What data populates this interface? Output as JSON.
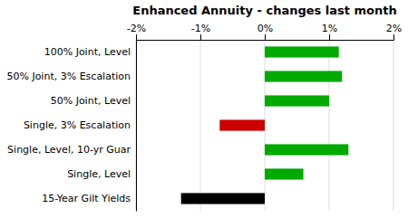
{
  "chart_data": {
    "type": "bar",
    "orientation": "horizontal",
    "title": "Enhanced Annuity - changes last month",
    "categories": [
      "15-Year Gilt Yields",
      "Single, Level",
      "Single, Level, 10-yr Guar",
      "Single, 3% Escalation",
      "50% Joint, Level",
      "50% Joint, 3% Escalation",
      "100% Joint, Level"
    ],
    "values": [
      -1.3,
      0.6,
      1.3,
      -0.7,
      1.0,
      1.2,
      1.15
    ],
    "colors": [
      "#000000",
      "#00aa00",
      "#00aa00",
      "#cc0000",
      "#00aa00",
      "#00aa00",
      "#00aa00"
    ],
    "xlim": [
      -2,
      2
    ],
    "xticks": [
      {
        "value": -2,
        "label": "-2%"
      },
      {
        "value": -1,
        "label": "-1%"
      },
      {
        "value": 0,
        "label": "0%"
      },
      {
        "value": 1,
        "label": "1%"
      },
      {
        "value": 2,
        "label": "2%"
      }
    ],
    "grid": true
  }
}
